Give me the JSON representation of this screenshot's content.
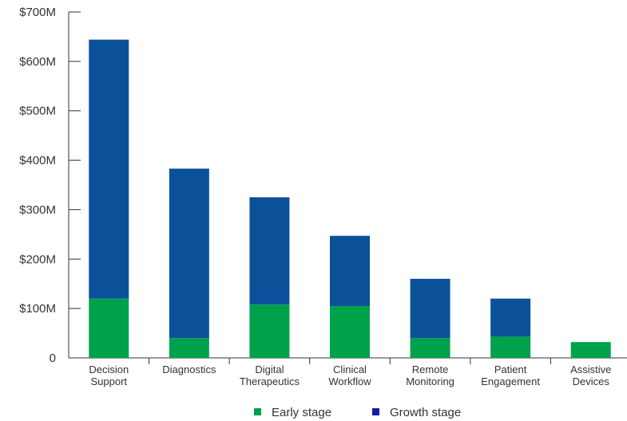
{
  "chart_data": {
    "type": "bar",
    "stacked": true,
    "title": "",
    "xlabel": "",
    "ylabel": "",
    "ylim": [
      0,
      700
    ],
    "y_ticks": [
      {
        "value": 0,
        "label": "0"
      },
      {
        "value": 100,
        "label": "$100M"
      },
      {
        "value": 200,
        "label": "$200M"
      },
      {
        "value": 300,
        "label": "$300M"
      },
      {
        "value": 400,
        "label": "$400M"
      },
      {
        "value": 500,
        "label": "$500M"
      },
      {
        "value": 600,
        "label": "$600M"
      },
      {
        "value": 700,
        "label": "$700M"
      }
    ],
    "categories": [
      [
        "Decision",
        "Support"
      ],
      [
        "Diagnostics"
      ],
      [
        "Digital",
        "Therapeutics"
      ],
      [
        "Clinical",
        "Workflow"
      ],
      [
        "Remote",
        "Monitoring"
      ],
      [
        "Patient",
        "Engagement"
      ],
      [
        "Assistive",
        "Devices"
      ]
    ],
    "series": [
      {
        "name": "Early stage",
        "color": "#00a14b",
        "values": [
          120,
          40,
          108,
          105,
          40,
          43,
          32
        ]
      },
      {
        "name": "Growth stage",
        "color": "#0b519a",
        "values": [
          524,
          343,
          217,
          142,
          120,
          77,
          0
        ]
      }
    ],
    "legend": {
      "position": "bottom",
      "items": [
        {
          "label": "Early stage",
          "color": "#00a14b"
        },
        {
          "label": "Growth stage",
          "color": "#1a1aa6"
        }
      ]
    },
    "grid": false
  }
}
